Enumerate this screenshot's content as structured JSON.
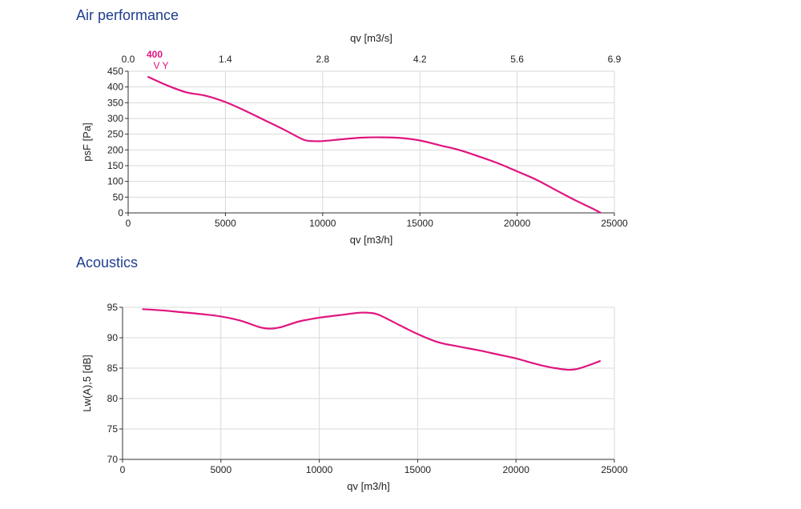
{
  "sections": {
    "air": "Air performance",
    "acoustics": "Acoustics"
  },
  "colors": {
    "curve": "#e0157f",
    "grid": "#d9d9d9",
    "axis": "#333333",
    "title": "#1f3d8f"
  },
  "chart_data": [
    {
      "type": "line",
      "title": "Air performance",
      "xlabel": "qv [m3/h]",
      "ylabel": "psF [Pa]",
      "x2label": "qv [m3/s]",
      "xlim": [
        0,
        25000
      ],
      "ylim": [
        0,
        450
      ],
      "xticks": [
        0,
        5000,
        10000,
        15000,
        20000,
        25000
      ],
      "yticks": [
        0,
        50,
        100,
        150,
        200,
        250,
        300,
        350,
        400,
        450
      ],
      "x2ticks": [
        "0.0",
        "1.4",
        "2.8",
        "4.2",
        "5.6",
        "6.9"
      ],
      "curve_label_top": "400",
      "curve_label_bottom": "V Y",
      "grid": true,
      "series": [
        {
          "x": [
            1000,
            2000,
            3000,
            4000,
            5000,
            6000,
            7000,
            8000,
            9000,
            9500,
            10000,
            11000,
            12000,
            13000,
            14000,
            15000,
            16000,
            17000,
            18000,
            19000,
            20000,
            21000,
            22000,
            23000,
            24000,
            24300
          ],
          "y": [
            433,
            405,
            383,
            372,
            352,
            325,
            295,
            265,
            233,
            228,
            228,
            234,
            239,
            240,
            238,
            230,
            215,
            200,
            180,
            158,
            132,
            105,
            72,
            40,
            10,
            0
          ]
        }
      ]
    },
    {
      "type": "line",
      "title": "Acoustics",
      "xlabel": "qv [m3/h]",
      "ylabel": "Lw(A),5 [dB]",
      "xlim": [
        0,
        25000
      ],
      "ylim": [
        70,
        95
      ],
      "xticks": [
        0,
        5000,
        10000,
        15000,
        20000,
        25000
      ],
      "yticks": [
        70,
        75,
        80,
        85,
        90,
        95
      ],
      "grid": true,
      "series": [
        {
          "x": [
            1000,
            2000,
            3000,
            4000,
            5000,
            6000,
            7000,
            7500,
            8000,
            9000,
            10000,
            11000,
            12000,
            12500,
            13000,
            14000,
            15000,
            16000,
            17000,
            18000,
            19000,
            20000,
            21000,
            22000,
            23000,
            24300
          ],
          "y": [
            94.7,
            94.5,
            94.2,
            93.9,
            93.5,
            92.8,
            91.7,
            91.5,
            91.7,
            92.7,
            93.3,
            93.7,
            94.1,
            94.1,
            93.8,
            92.2,
            90.6,
            89.3,
            88.6,
            88.0,
            87.3,
            86.6,
            85.7,
            85.0,
            84.8,
            86.2
          ]
        }
      ]
    }
  ]
}
